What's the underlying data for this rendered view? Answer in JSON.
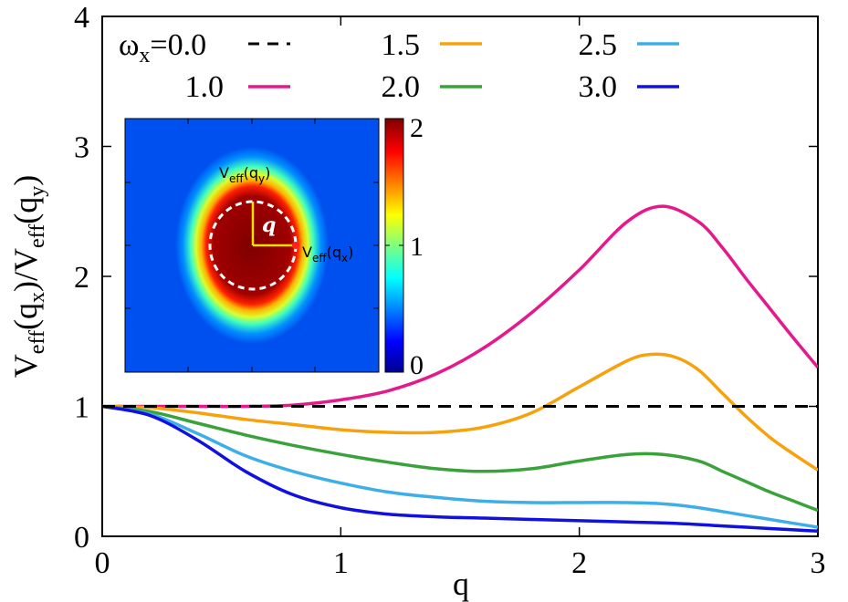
{
  "chart_data": {
    "type": "line",
    "xlabel": "q",
    "ylabel": {
      "main": "V",
      "sub1": "eff",
      "mid1": "(q",
      "sub2": "x",
      "mid2": ")/V",
      "sub3": "eff",
      "mid3": "(q",
      "sub4": "y",
      "end": ")"
    },
    "xlim": [
      0,
      3
    ],
    "ylim": [
      0,
      4
    ],
    "xticks": [
      "0",
      "1",
      "2",
      "3"
    ],
    "yticks": [
      "0",
      "1",
      "2",
      "3",
      "4"
    ],
    "legend_position": "top",
    "legend_symbol": "ω",
    "legend_symbol_sub": "x",
    "series": [
      {
        "name": "=0.0",
        "color": "#000000",
        "dashed": true,
        "x": [
          0,
          3
        ],
        "y": [
          1.0,
          1.0
        ]
      },
      {
        "name": "1.0",
        "color": "#e5198c",
        "dashed": false,
        "x": [
          0,
          0.2,
          0.4,
          0.6,
          0.8,
          1.0,
          1.2,
          1.4,
          1.6,
          1.8,
          2.0,
          2.2,
          2.35,
          2.5,
          2.6,
          2.7,
          2.8,
          2.9,
          3.0
        ],
        "y": [
          1.0,
          1.0,
          1.0,
          1.0,
          1.01,
          1.05,
          1.12,
          1.25,
          1.45,
          1.72,
          2.05,
          2.42,
          2.54,
          2.42,
          2.22,
          1.98,
          1.75,
          1.52,
          1.3
        ]
      },
      {
        "name": "1.5",
        "color": "#f7a10c",
        "dashed": false,
        "x": [
          0,
          0.2,
          0.4,
          0.6,
          0.8,
          1.0,
          1.2,
          1.4,
          1.6,
          1.8,
          2.0,
          2.2,
          2.3,
          2.4,
          2.5,
          2.6,
          2.7,
          2.8,
          2.9,
          3.0
        ],
        "y": [
          1.0,
          0.99,
          0.95,
          0.9,
          0.86,
          0.82,
          0.8,
          0.8,
          0.84,
          0.95,
          1.15,
          1.35,
          1.4,
          1.38,
          1.28,
          1.1,
          0.92,
          0.76,
          0.63,
          0.51
        ]
      },
      {
        "name": "2.0",
        "color": "#3aa23a",
        "dashed": false,
        "x": [
          0,
          0.2,
          0.4,
          0.6,
          0.8,
          1.0,
          1.2,
          1.4,
          1.6,
          1.8,
          2.0,
          2.2,
          2.35,
          2.5,
          2.6,
          2.7,
          2.8,
          2.9,
          3.0
        ],
        "y": [
          1.0,
          0.96,
          0.87,
          0.78,
          0.7,
          0.63,
          0.57,
          0.52,
          0.5,
          0.52,
          0.58,
          0.63,
          0.63,
          0.58,
          0.5,
          0.42,
          0.34,
          0.27,
          0.2
        ]
      },
      {
        "name": "2.5",
        "color": "#3eaee8",
        "dashed": false,
        "x": [
          0,
          0.2,
          0.4,
          0.6,
          0.8,
          1.0,
          1.2,
          1.4,
          1.6,
          1.8,
          2.0,
          2.2,
          2.35,
          2.5,
          2.7,
          2.9,
          3.0
        ],
        "y": [
          1.0,
          0.94,
          0.79,
          0.62,
          0.5,
          0.41,
          0.34,
          0.3,
          0.27,
          0.26,
          0.26,
          0.26,
          0.25,
          0.22,
          0.16,
          0.1,
          0.07
        ]
      },
      {
        "name": "3.0",
        "color": "#1010e0",
        "dashed": false,
        "x": [
          0,
          0.2,
          0.4,
          0.6,
          0.8,
          1.0,
          1.2,
          1.4,
          1.6,
          1.8,
          2.0,
          2.2,
          2.4,
          2.6,
          2.8,
          3.0
        ],
        "y": [
          1.0,
          0.93,
          0.74,
          0.5,
          0.32,
          0.22,
          0.17,
          0.15,
          0.14,
          0.13,
          0.12,
          0.11,
          0.1,
          0.08,
          0.06,
          0.04
        ]
      }
    ],
    "inset": {
      "type": "heatmap",
      "colorbar_ticks": [
        "0",
        "1",
        "2"
      ],
      "label_vy": {
        "main": "V",
        "sub": "eff",
        "mid": "(q",
        "sub2": "y",
        "end": ")"
      },
      "label_vx": {
        "main": "V",
        "sub": "eff",
        "mid": "(q",
        "sub2": "x",
        "end": ")"
      },
      "label_q": "q"
    }
  }
}
